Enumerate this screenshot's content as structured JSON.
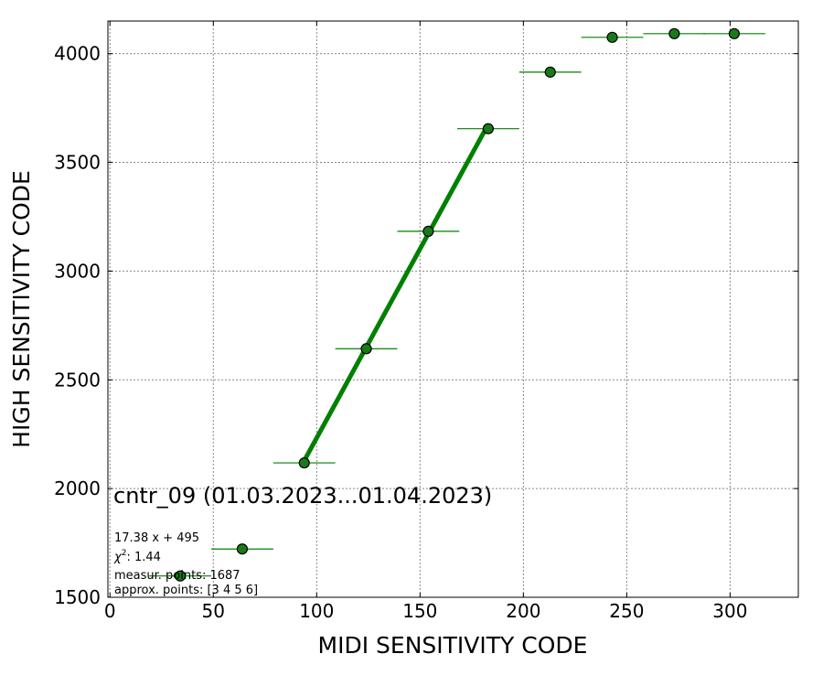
{
  "chart_data": {
    "type": "scatter",
    "title": "cntr_09 (01.03.2023...01.04.2023)",
    "xlabel": "MIDI SENSITIVITY CODE",
    "ylabel": "HIGH SENSITIVITY CODE",
    "xlim": [
      -1,
      333
    ],
    "ylim": [
      1500,
      4150
    ],
    "xticks": [
      0,
      50,
      100,
      150,
      200,
      250,
      300
    ],
    "yticks": [
      1500,
      2000,
      2500,
      3000,
      3500,
      4000
    ],
    "grid": true,
    "colors": {
      "marker": "#1a7a1a",
      "line": "#008000",
      "errorbar": "#008000",
      "grid": "#888888"
    },
    "points": [
      {
        "x": 34,
        "y": 1598,
        "xerr": 15
      },
      {
        "x": 64,
        "y": 1722,
        "xerr": 15
      },
      {
        "x": 94,
        "y": 2118,
        "xerr": 15
      },
      {
        "x": 124,
        "y": 2643,
        "xerr": 15
      },
      {
        "x": 154,
        "y": 3183,
        "xerr": 15
      },
      {
        "x": 183,
        "y": 3655,
        "xerr": 15
      },
      {
        "x": 213,
        "y": 3915,
        "xerr": 15
      },
      {
        "x": 243,
        "y": 4075,
        "xerr": 15
      },
      {
        "x": 273,
        "y": 4092,
        "xerr": 15
      },
      {
        "x": 302,
        "y": 4092,
        "xerr": 15
      }
    ],
    "fit": {
      "slope": 17.38,
      "intercept": 495,
      "x_range": [
        94,
        183
      ]
    },
    "annotations": {
      "fit_label": "17.38 x + 495",
      "chi2_symbol": "χ",
      "chi2_exp": "2",
      "chi2_value": ": 1.44",
      "measur_points": "measur. points: 1687",
      "approx_points": "approx. points: [3 4 5 6]"
    }
  }
}
